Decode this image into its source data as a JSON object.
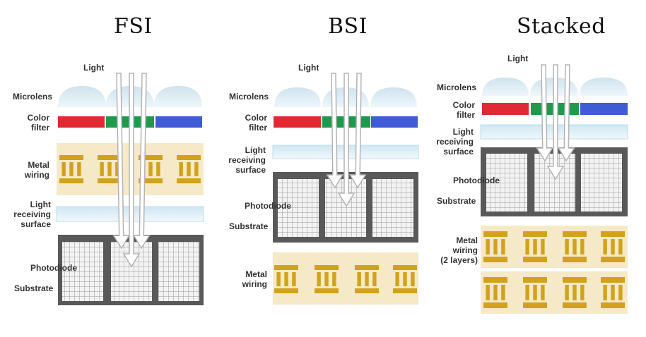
{
  "fsi": {
    "title": "FSI",
    "light": "Light",
    "microlens": "Microlens",
    "color_filter": [
      "Color",
      "filter"
    ],
    "metal_wiring": [
      "Metal",
      "wiring"
    ],
    "light_receiving": [
      "Light",
      "receiving",
      "surface"
    ],
    "photodiode": "Photodiode",
    "substrate": "Substrate"
  },
  "bsi": {
    "title": "BSI",
    "light": "Light",
    "microlens": "Microlens",
    "color_filter": [
      "Color",
      "filter"
    ],
    "light_receiving": [
      "Light",
      "receiving",
      "surface"
    ],
    "photodiode": "Photodiode",
    "substrate": "Substrate",
    "metal_wiring": [
      "Metal",
      "wiring"
    ]
  },
  "stacked": {
    "title": "Stacked",
    "light": "Light",
    "microlens": "Microlens",
    "color_filter": [
      "Color",
      "filter"
    ],
    "light_receiving": [
      "Light",
      "receiving",
      "surface"
    ],
    "photodiode": "Photodiode",
    "substrate": "Substrate",
    "metal_wiring": [
      "Metal",
      "wiring",
      "(2 layers)"
    ]
  },
  "colors": {
    "microlens": "#dcebf3",
    "filter_red": "#e02933",
    "filter_green": "#1f9a4c",
    "filter_blue": "#3f5bd6",
    "receiving_surface": "#e2f0f8",
    "wiring_bg": "#f6e9c8",
    "wiring_metal": "#d2a21e",
    "substrate": "#595959",
    "photodiode_cell": "#e6e6e6",
    "arrow": "#b4b4b4"
  }
}
